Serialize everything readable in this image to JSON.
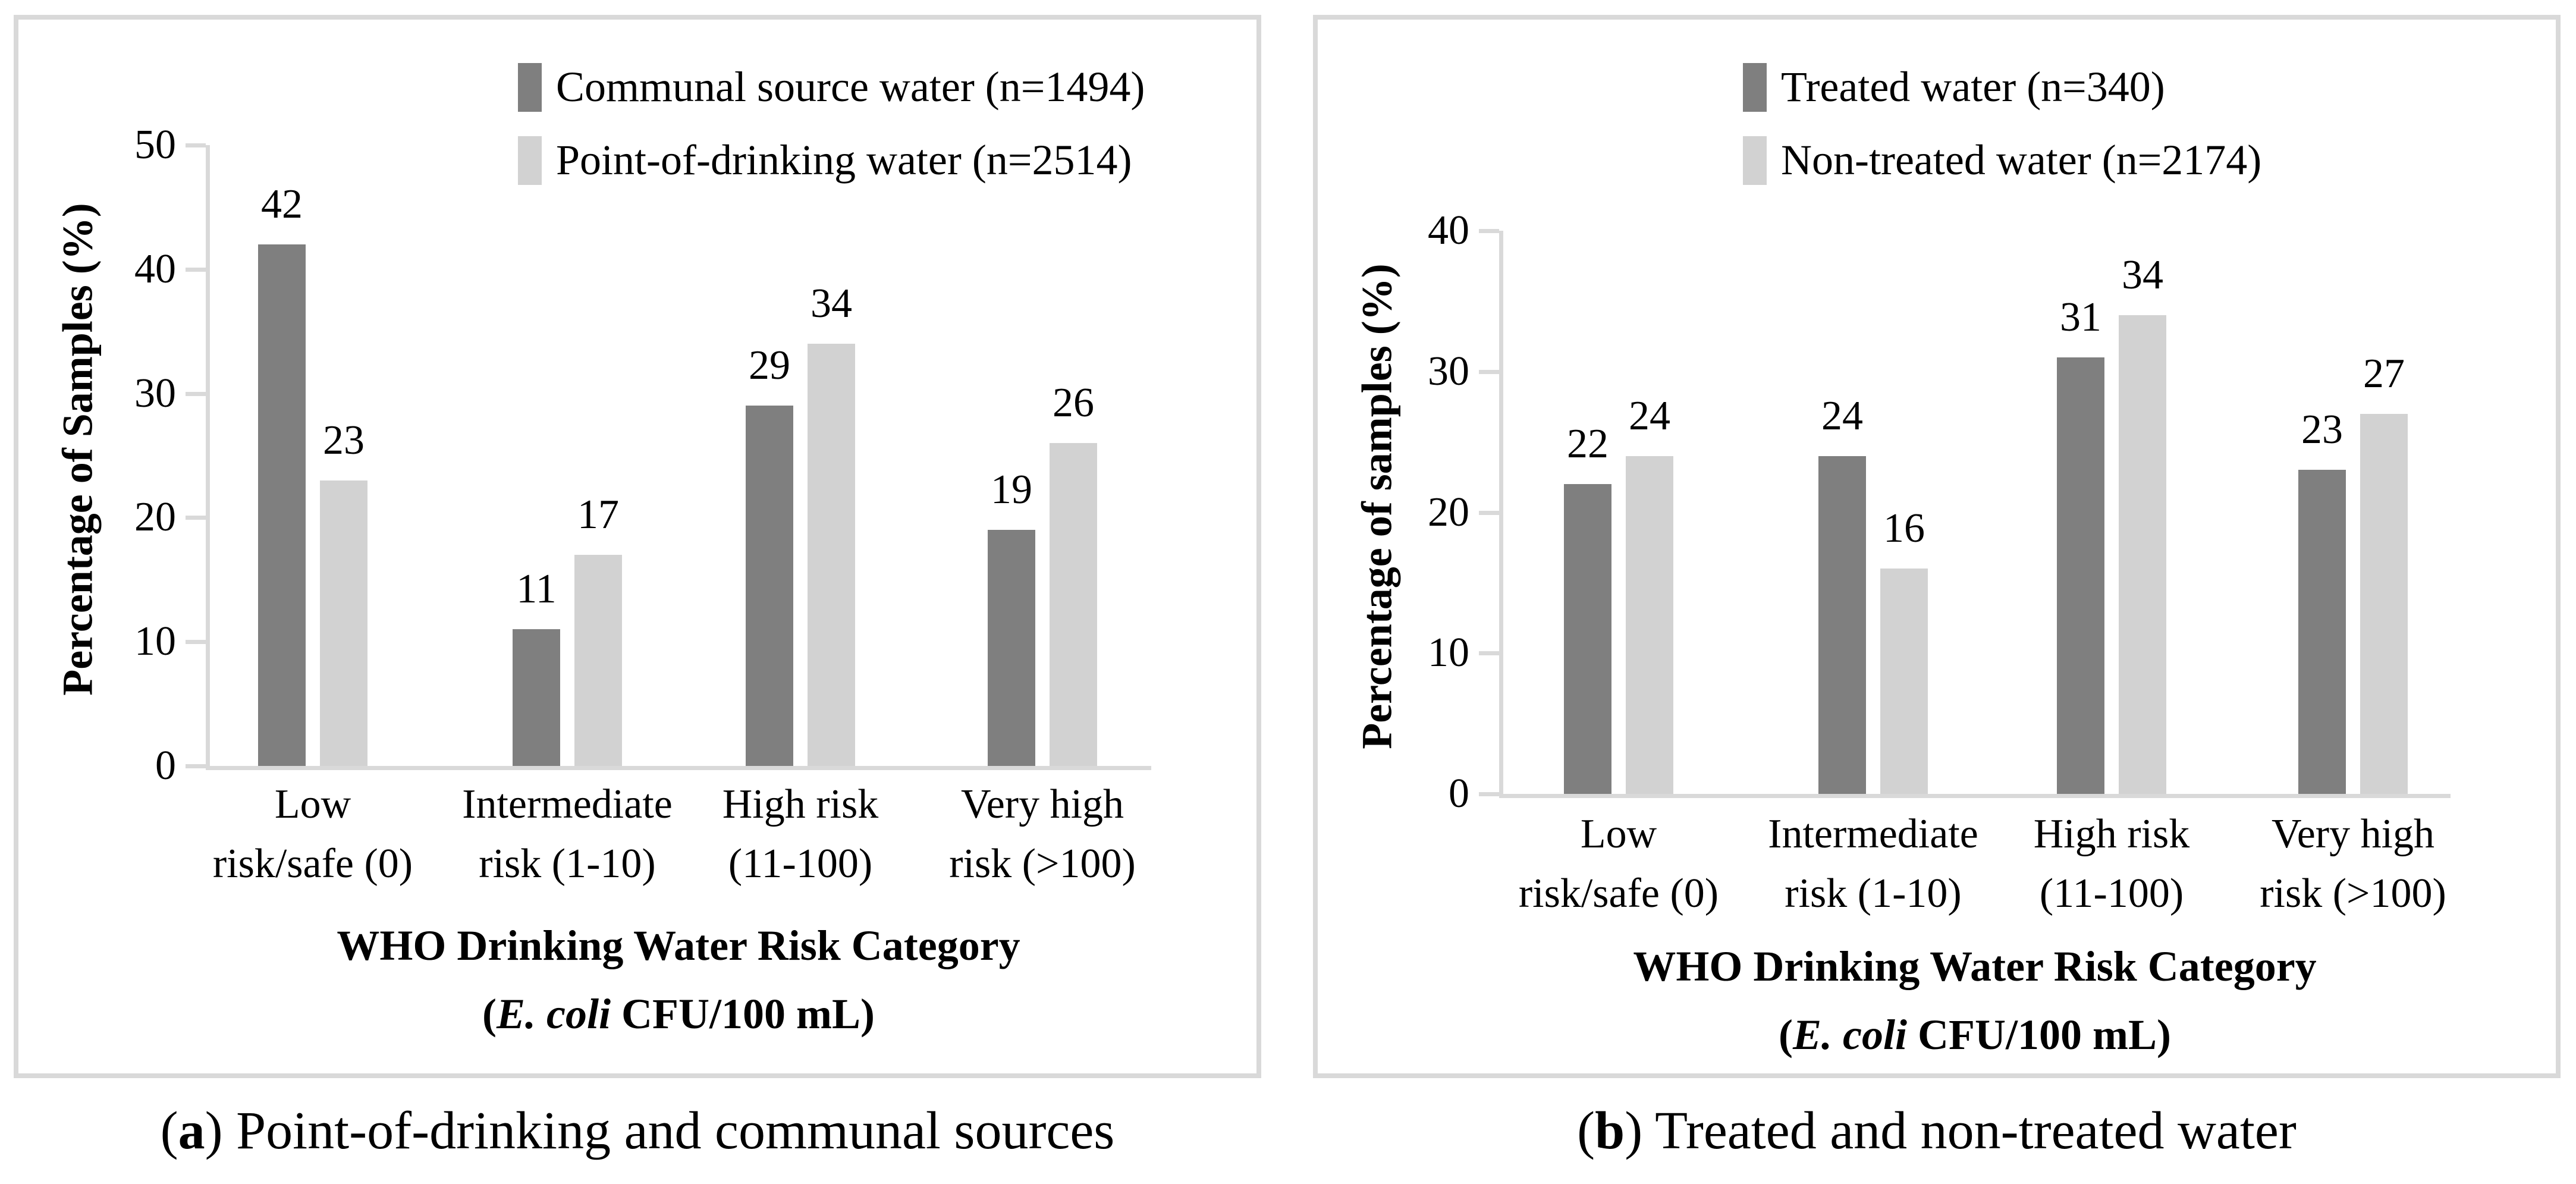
{
  "figure": {
    "background": "#ffffff",
    "panel_border_color": "#d9d9d9",
    "axis_color": "#d9d9d9",
    "text_color": "#000000",
    "series_dark_color": "#7f7f7f",
    "series_light_color": "#d2d2d2"
  },
  "chart_data": [
    {
      "type": "bar",
      "panel": "a",
      "cap_open": "(",
      "caption_letter": "a",
      "cap_close": ") ",
      "caption_text": "Point-of-drinking and communal sources",
      "ylabel": "Percentage of Samples (%)",
      "xlabel_line1": "WHO Drinking Water Risk Category",
      "xlabel_line2": {
        "pre": "(",
        "italic": "E. coli",
        "post": " CFU/100 mL)"
      },
      "ylim": [
        0,
        50
      ],
      "yticks": [
        0,
        10,
        20,
        30,
        40,
        50
      ],
      "grid": false,
      "legend_position": "top-center",
      "categories": [
        [
          "Low",
          "risk/safe (0)"
        ],
        [
          "Intermediate",
          "risk (1-10)"
        ],
        [
          "High risk",
          "(11-100)"
        ],
        [
          "Very high",
          "risk (>100)"
        ]
      ],
      "series": [
        {
          "name": "Communal source water (n=1494)",
          "color": "#7f7f7f",
          "values": [
            42,
            11,
            29,
            19
          ]
        },
        {
          "name": "Point-of-drinking water (n=2514)",
          "color": "#d2d2d2",
          "values": [
            23,
            17,
            34,
            26
          ]
        }
      ]
    },
    {
      "type": "bar",
      "panel": "b",
      "cap_open": "(",
      "caption_letter": "b",
      "cap_close": ") ",
      "caption_text": "Treated and non-treated water",
      "ylabel": "Percentage of samples (%)",
      "xlabel_line1": "WHO Drinking Water Risk Category",
      "xlabel_line2": {
        "pre": "(",
        "italic": "E. coli",
        "post": " CFU/100 mL)"
      },
      "ylim": [
        0,
        40
      ],
      "yticks": [
        0,
        10,
        20,
        30,
        40
      ],
      "grid": false,
      "legend_position": "top-center",
      "categories": [
        [
          "Low",
          "risk/safe (0)"
        ],
        [
          "Intermediate",
          "risk (1-10)"
        ],
        [
          "High risk",
          "(11-100)"
        ],
        [
          "Very high",
          "risk (>100)"
        ]
      ],
      "series": [
        {
          "name": "Treated water (n=340)",
          "color": "#7f7f7f",
          "values": [
            22,
            24,
            31,
            23
          ]
        },
        {
          "name": "Non-treated water (n=2174)",
          "color": "#d2d2d2",
          "values": [
            24,
            16,
            34,
            27
          ]
        }
      ]
    }
  ]
}
